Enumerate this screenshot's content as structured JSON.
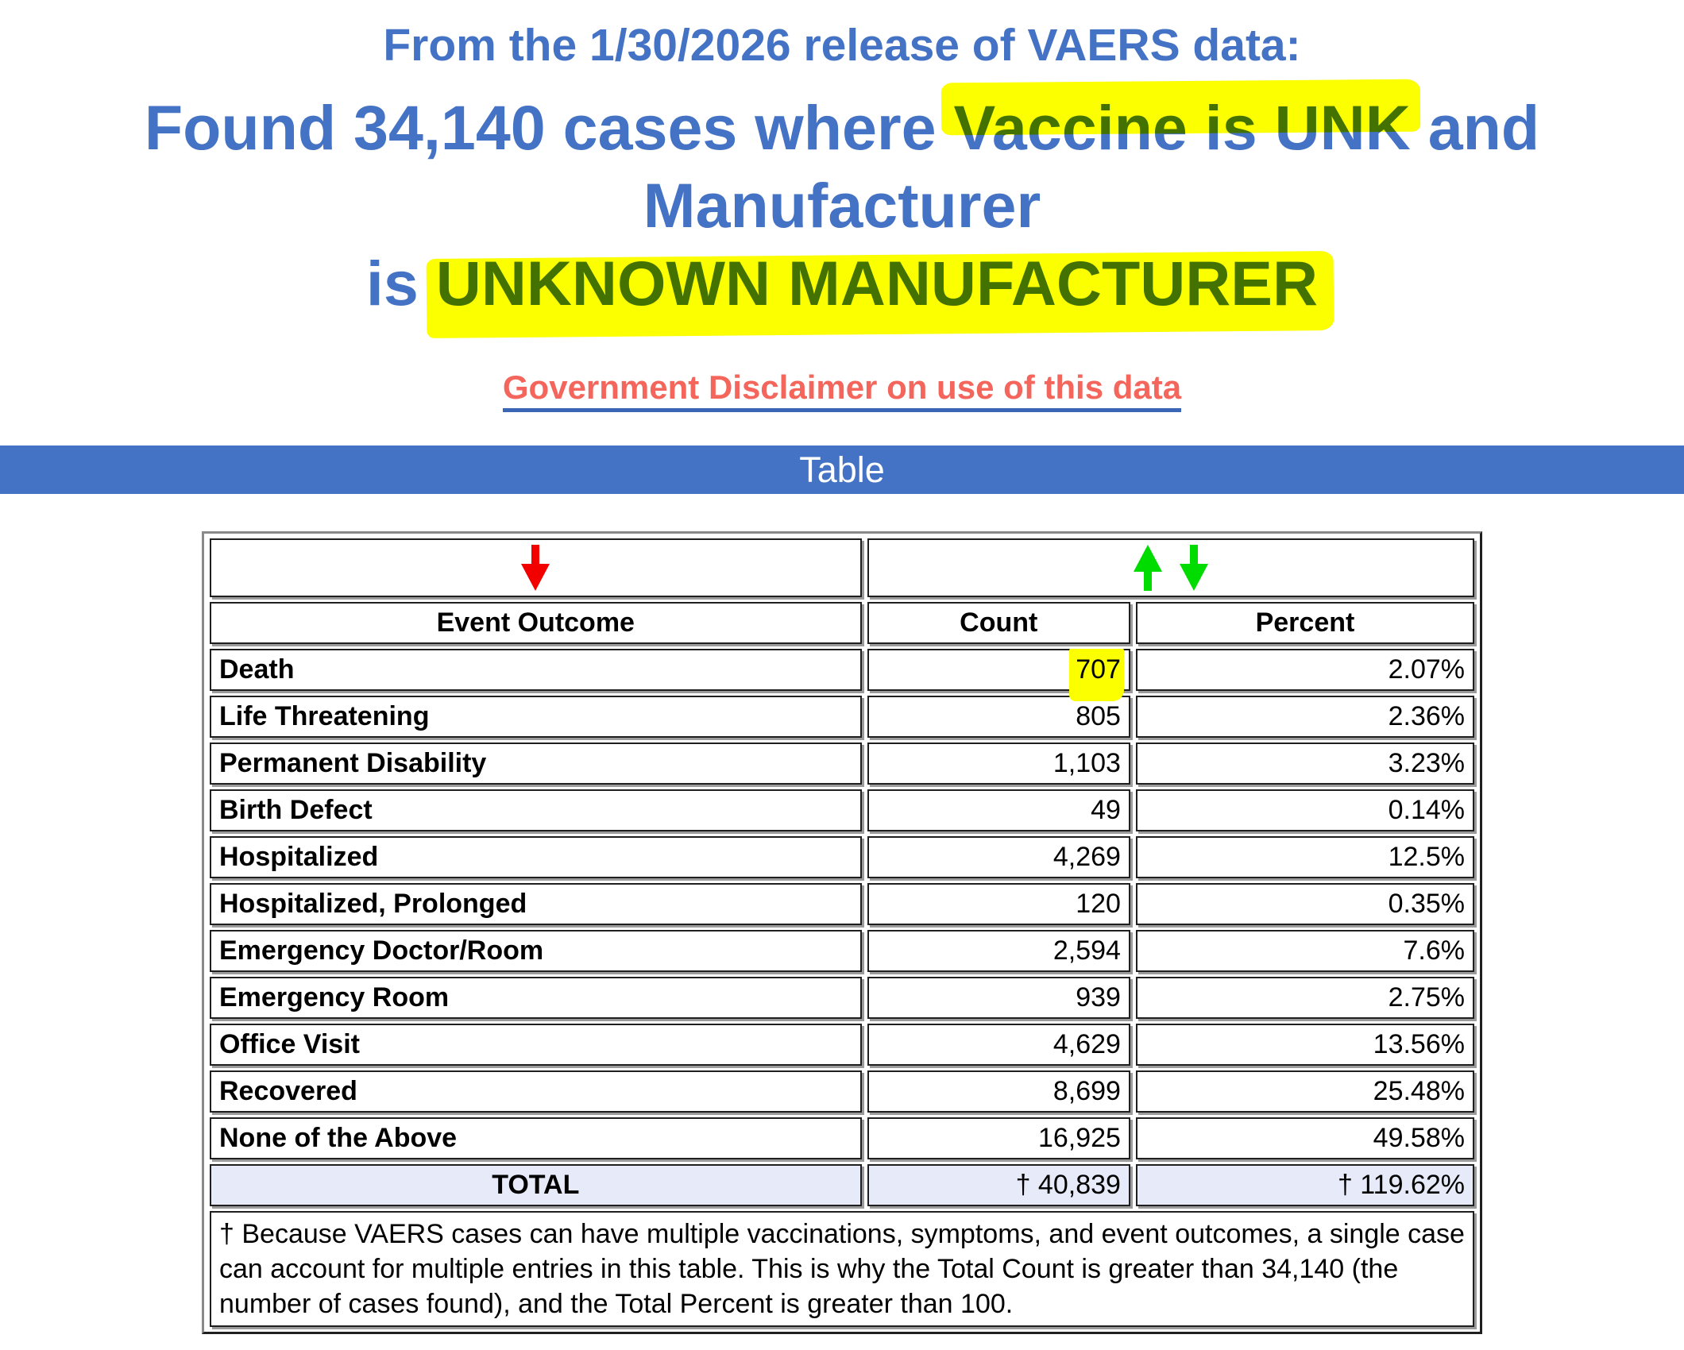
{
  "colors": {
    "heading_blue": "#4472C4",
    "bar_blue": "#4472C4",
    "link_red": "#F4655C",
    "underline_blue": "#3B66B5",
    "highlight_yellow": "#FBFF00",
    "total_row_bg": "#E7EBF9",
    "arrow_red": "#F20000",
    "arrow_green": "#00DB00"
  },
  "header": {
    "release_line": "From the 1/30/2026 release of VAERS data:",
    "headline_line1_pre": "Found 34,140 cases where ",
    "headline_line1_highlight": "Vaccine is UNK",
    "headline_line1_post": " and Manufacturer",
    "headline_line2_pre": "is ",
    "headline_line2_highlight": "UNKNOWN MANUFACTURER",
    "disclaimer_link_label": "Government Disclaimer on use of this data",
    "section_title": "Table"
  },
  "table": {
    "sort_icons": {
      "outcome_column": "red-down-arrow",
      "value_columns": [
        "green-up-arrow",
        "green-down-arrow"
      ]
    },
    "columns": [
      "Event Outcome",
      "Count",
      "Percent"
    ],
    "rows": [
      {
        "outcome": "Death",
        "count": "707",
        "percent": "2.07%",
        "count_highlighted": true
      },
      {
        "outcome": "Life Threatening",
        "count": "805",
        "percent": "2.36%",
        "count_highlighted": false
      },
      {
        "outcome": "Permanent Disability",
        "count": "1,103",
        "percent": "3.23%",
        "count_highlighted": false
      },
      {
        "outcome": "Birth Defect",
        "count": "49",
        "percent": "0.14%",
        "count_highlighted": false
      },
      {
        "outcome": "Hospitalized",
        "count": "4,269",
        "percent": "12.5%",
        "count_highlighted": false
      },
      {
        "outcome": "Hospitalized, Prolonged",
        "count": "120",
        "percent": "0.35%",
        "count_highlighted": false
      },
      {
        "outcome": "Emergency Doctor/Room",
        "count": "2,594",
        "percent": "7.6%",
        "count_highlighted": false
      },
      {
        "outcome": "Emergency Room",
        "count": "939",
        "percent": "2.75%",
        "count_highlighted": false
      },
      {
        "outcome": "Office Visit",
        "count": "4,629",
        "percent": "13.56%",
        "count_highlighted": false
      },
      {
        "outcome": "Recovered",
        "count": "8,699",
        "percent": "25.48%",
        "count_highlighted": false
      },
      {
        "outcome": "None of the Above",
        "count": "16,925",
        "percent": "49.58%",
        "count_highlighted": false
      }
    ],
    "total": {
      "label": "TOTAL",
      "count": "† 40,839",
      "percent": "† 119.62%"
    },
    "footnote": "† Because VAERS cases can have multiple vaccinations, symptoms, and event outcomes, a single case can account for multiple entries in this table. This is why the Total Count is greater than 34,140 (the number of cases found), and the Total Percent is greater than 100."
  }
}
